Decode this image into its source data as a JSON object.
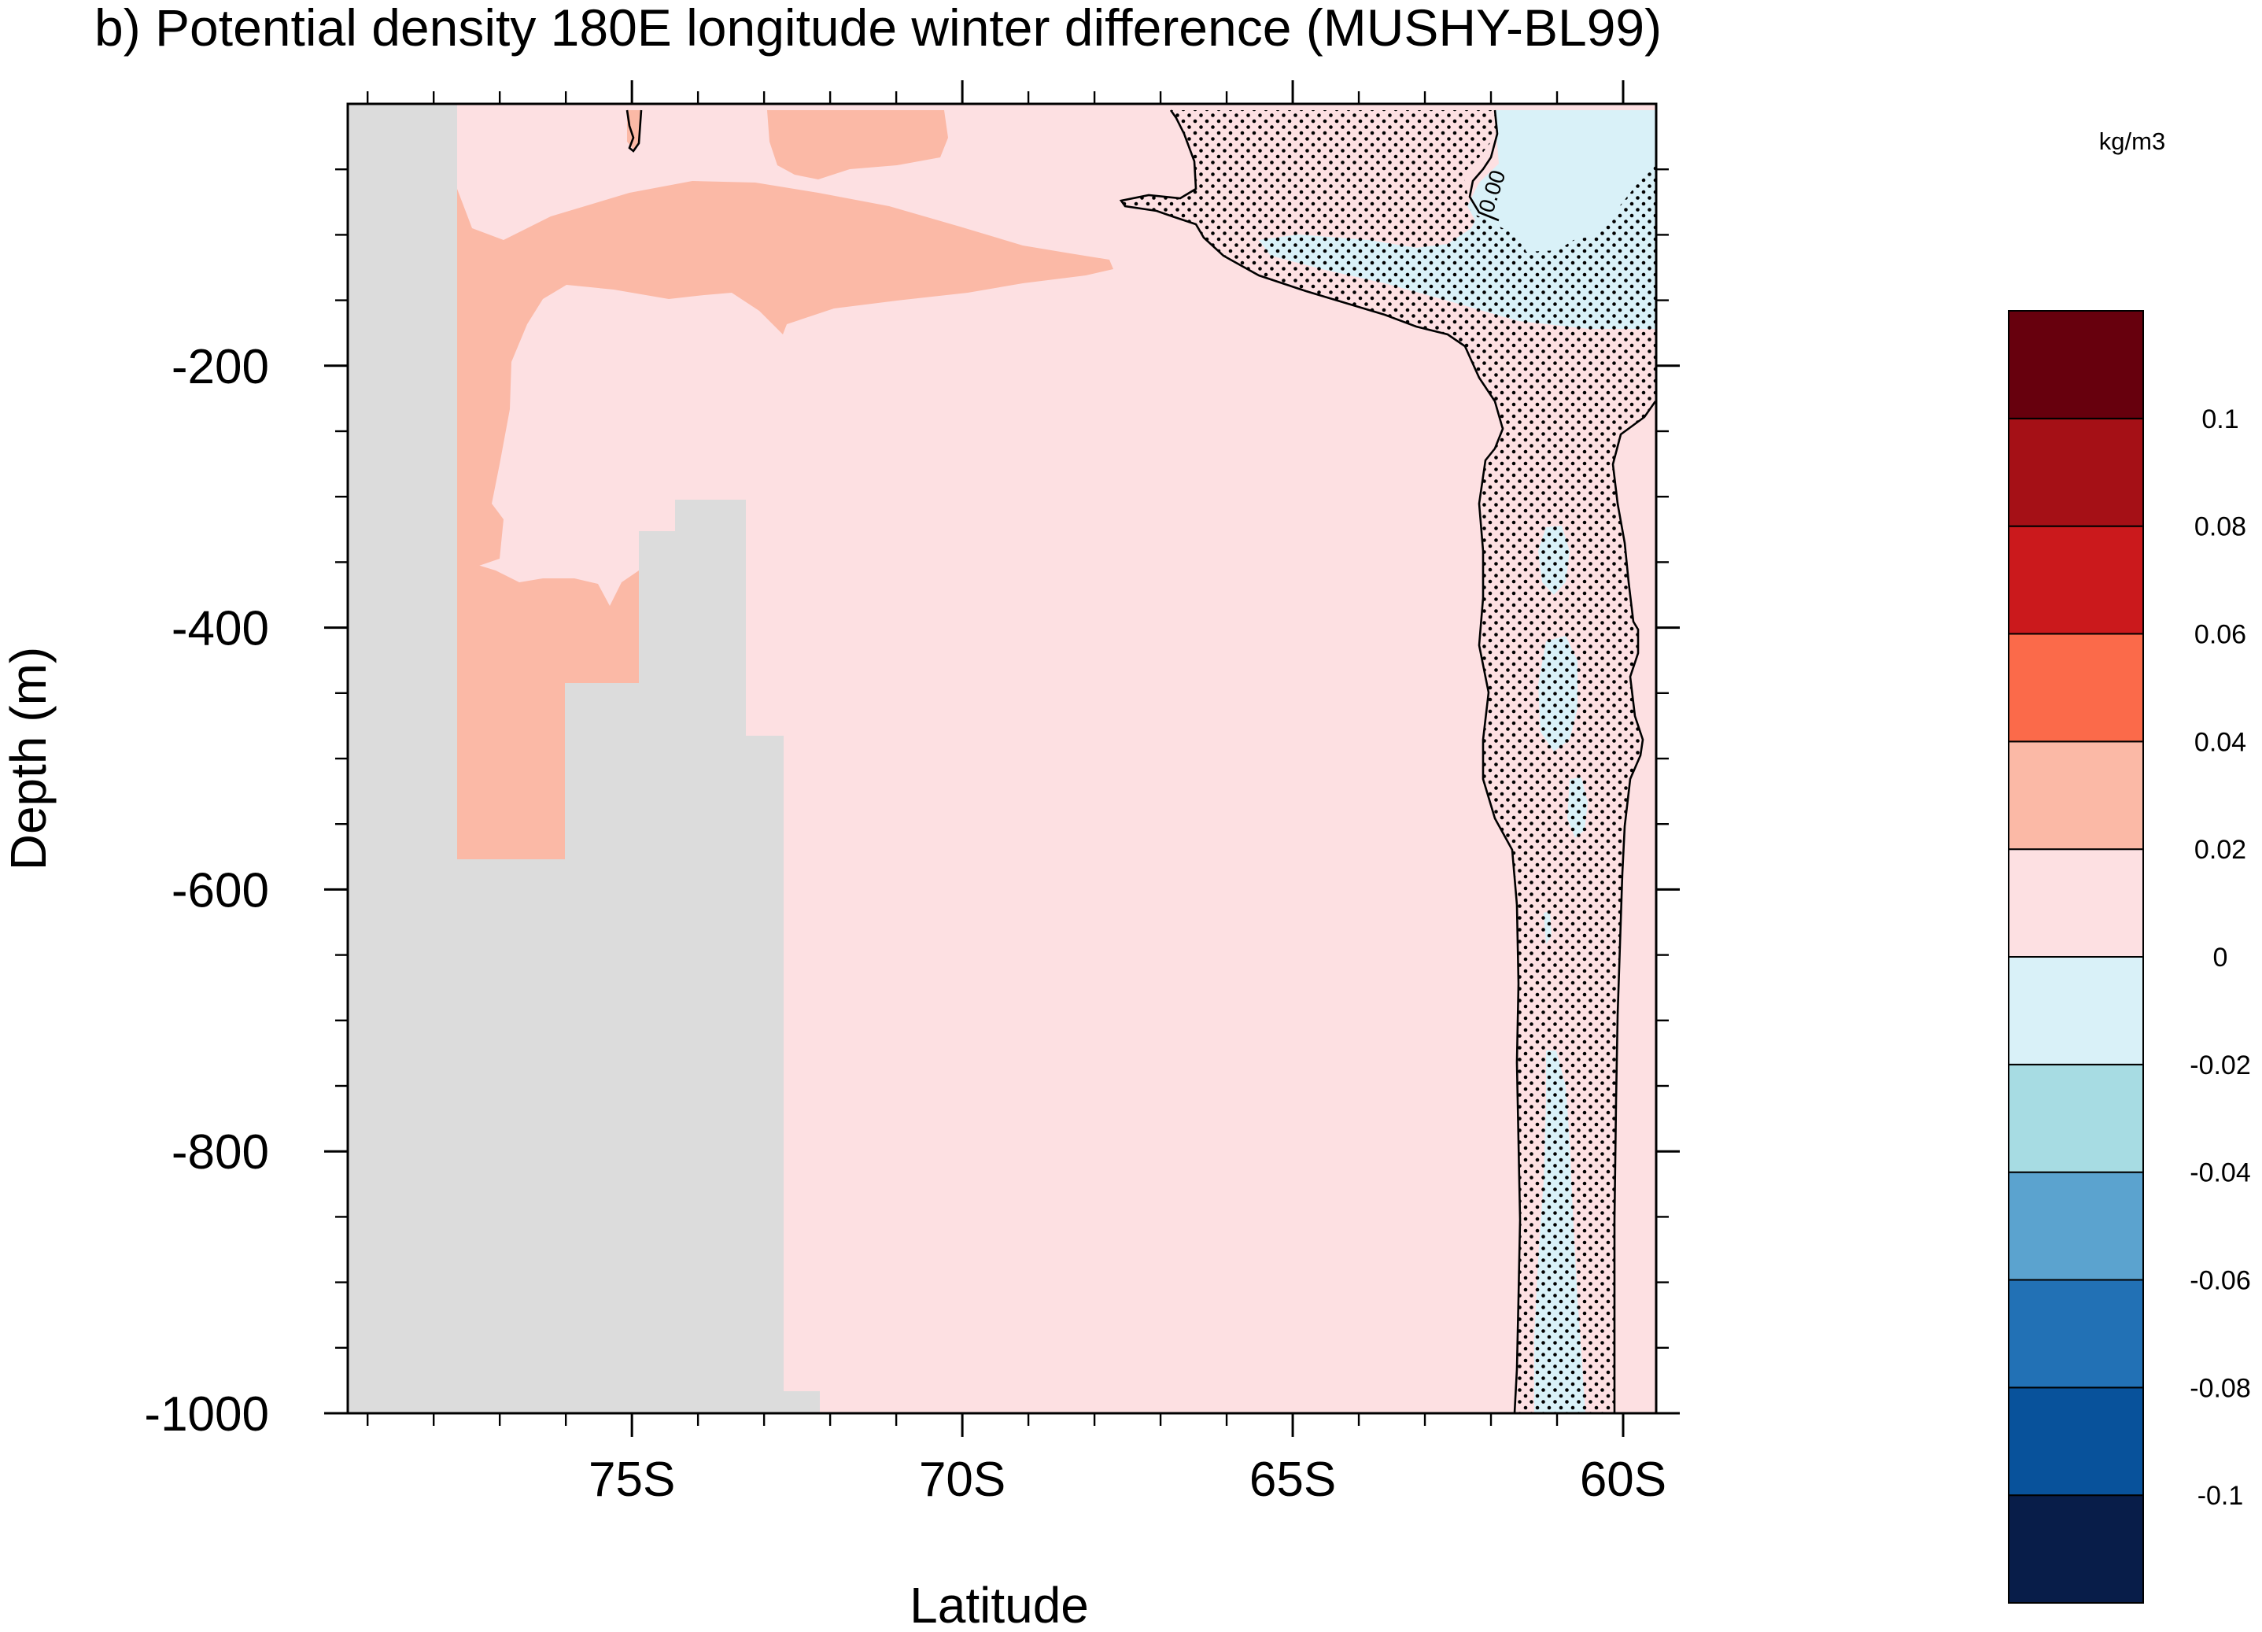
{
  "chart_data": {
    "type": "contour",
    "title": "b) Potential density 180E longitude winter difference (MUSHY-BL99)",
    "xlabel": "Latitude",
    "ylabel": "Depth (m)",
    "x_ticks": [
      {
        "value": -75,
        "label": "75S"
      },
      {
        "value": -70,
        "label": "70S"
      },
      {
        "value": -65,
        "label": "65S"
      },
      {
        "value": -60,
        "label": "60S"
      }
    ],
    "y_ticks": [
      {
        "value": -200,
        "label": "-200"
      },
      {
        "value": -400,
        "label": "-400"
      },
      {
        "value": -600,
        "label": "-600"
      },
      {
        "value": -800,
        "label": "-800"
      },
      {
        "value": -1000,
        "label": "-1000"
      }
    ],
    "xlim": [
      -79.3,
      -59.5
    ],
    "ylim": [
      -1000,
      0
    ],
    "contour_line_label": "0.00",
    "colorbar": {
      "unit_label": "kg/m3",
      "colors": [
        "#081d49",
        "#08529b",
        "#2271b5",
        "#5ba3cf",
        "#a7dce3",
        "#d9f1f8",
        "#fde0e2",
        "#fbb9a6",
        "#fb6a4a",
        "#cb191c",
        "#a51016",
        "#67000d"
      ],
      "labels": [
        "-0.1",
        "-0.08",
        "-0.06",
        "-0.04",
        "-0.02",
        "0",
        "0.02",
        "0.04",
        "0.06",
        "0.08",
        "0.1"
      ]
    },
    "regions": {
      "background_fill": "#fde0e2",
      "land_mask_fill": "#dcdcdc",
      "positive_band_fill": "#fbb9a6",
      "negative_band_fill": "#d9f1f8",
      "stippling": "significant"
    }
  }
}
